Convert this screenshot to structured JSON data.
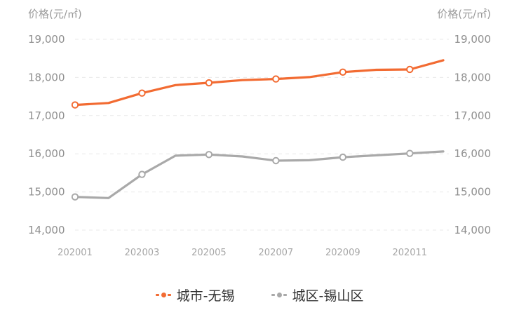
{
  "chart_data": {
    "type": "line",
    "x": [
      "202001",
      "202002",
      "202003",
      "202004",
      "202005",
      "202006",
      "202007",
      "202008",
      "202009",
      "202010",
      "202011",
      "202012"
    ],
    "x_tick_labels": [
      "202001",
      "202003",
      "202005",
      "202007",
      "202009",
      "202011"
    ],
    "ylabel_left": "价格(元/㎡)",
    "ylabel_right": "价格(元/㎡)",
    "ylim": [
      14000,
      19000
    ],
    "y_tick_labels": [
      "19,000",
      "18,000",
      "17,000",
      "16,000",
      "15,000",
      "14,000"
    ],
    "y_ticks": [
      19000,
      18000,
      17000,
      16000,
      15000,
      14000
    ],
    "grid": true,
    "legend_position": "bottom",
    "series": [
      {
        "name": "城市-无锡",
        "color": "#f26b32",
        "values": [
          17280,
          17330,
          17590,
          17800,
          17860,
          17930,
          17960,
          18010,
          18140,
          18200,
          18210,
          18450
        ],
        "markers": [
          true,
          false,
          true,
          false,
          true,
          false,
          true,
          false,
          true,
          false,
          true,
          false
        ]
      },
      {
        "name": "城区-锡山区",
        "color": "#a9a9a9",
        "values": [
          14870,
          14840,
          15460,
          15950,
          15980,
          15930,
          15820,
          15830,
          15910,
          15960,
          16010,
          16060
        ],
        "markers": [
          true,
          false,
          true,
          false,
          true,
          false,
          true,
          false,
          true,
          false,
          true,
          false
        ]
      }
    ]
  }
}
